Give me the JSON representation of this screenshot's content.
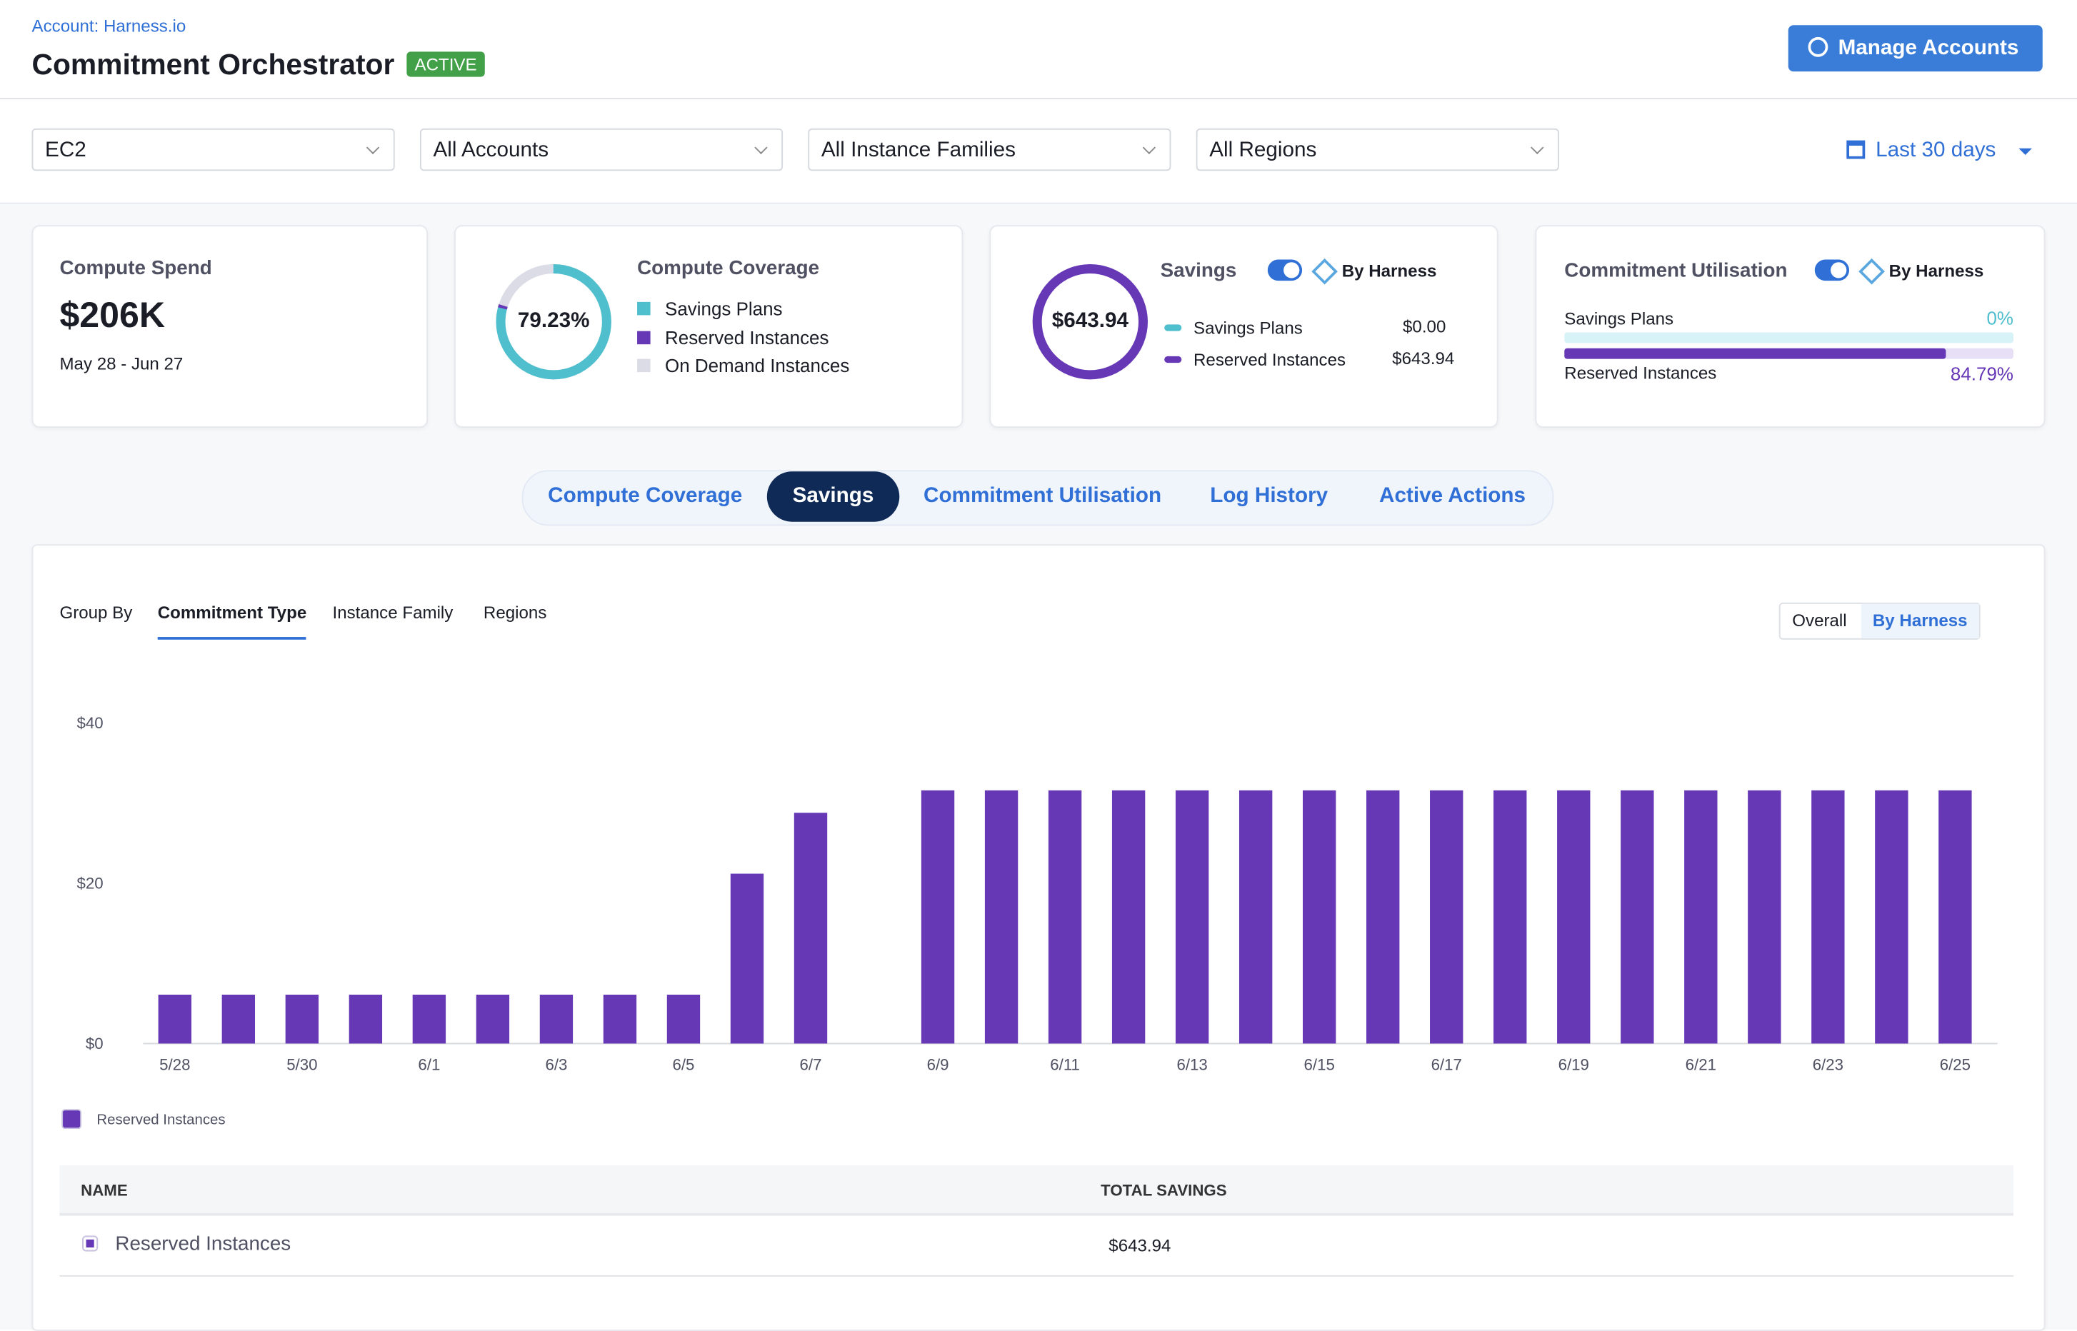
{
  "header": {
    "account": "Account: Harness.io",
    "title": "Commitment Orchestrator",
    "badge": "ACTIVE",
    "button": "Manage Accounts"
  },
  "filters": {
    "items": [
      "EC2",
      "All Accounts",
      "All Instance Families",
      "All Regions"
    ],
    "range": "Last 30 days"
  },
  "cards": {
    "spend": {
      "title": "Compute Spend",
      "value": "$206K",
      "period": "May 28 - Jun 27"
    },
    "coverage": {
      "title": "Compute Coverage",
      "value": "79.23%",
      "legend": [
        "Savings Plans",
        "Reserved Instances",
        "On Demand Instances"
      ]
    },
    "savings": {
      "title": "Savings",
      "toggle": "By Harness",
      "value": "$643.94",
      "rows": [
        [
          "Savings Plans",
          "$0.00"
        ],
        [
          "Reserved Instances",
          "$643.94"
        ]
      ]
    },
    "utilisation": {
      "title": "Commitment Utilisation",
      "toggle": "By Harness",
      "rows": [
        [
          "Savings Plans",
          "0%"
        ],
        [
          "Reserved Instances",
          "84.79%"
        ]
      ]
    }
  },
  "tabs": [
    "Compute Coverage",
    "Savings",
    "Commitment Utilisation",
    "Log History",
    "Active Actions"
  ],
  "group_by": {
    "label": "Group By",
    "options": [
      "Commitment Type",
      "Instance Family",
      "Regions"
    ],
    "view": [
      "Overall",
      "By Harness"
    ]
  },
  "chart_data": {
    "type": "bar",
    "categories": [
      "5/28",
      null,
      "5/30",
      null,
      "6/1",
      null,
      "6/3",
      null,
      "6/5",
      null,
      "6/7",
      null,
      "6/9",
      null,
      "6/11",
      null,
      "6/13",
      null,
      "6/15",
      null,
      "6/17",
      null,
      "6/19",
      null,
      "6/21",
      null,
      "6/23",
      null,
      "6/25"
    ],
    "series": [
      {
        "name": "Reserved Instances",
        "color": "#6638b6",
        "values": [
          6.1,
          6.1,
          6.1,
          6.1,
          6.1,
          6.1,
          6.1,
          6.1,
          6.1,
          21.2,
          28.8,
          null,
          31.6,
          31.6,
          31.6,
          31.6,
          31.6,
          31.6,
          31.6,
          31.6,
          31.6,
          31.6,
          31.6,
          31.6,
          31.6,
          31.6,
          31.6,
          31.6,
          31.6
        ]
      }
    ],
    "ylim": [
      0,
      40
    ],
    "yticks": [
      {
        "value": 0,
        "label": "$0"
      },
      {
        "value": 20,
        "label": "$20"
      },
      {
        "value": 40,
        "label": "$40"
      }
    ]
  },
  "table": {
    "columns": [
      "NAME",
      "TOTAL SAVINGS"
    ],
    "rows": [
      [
        "Reserved Instances",
        "$643.94"
      ]
    ]
  }
}
